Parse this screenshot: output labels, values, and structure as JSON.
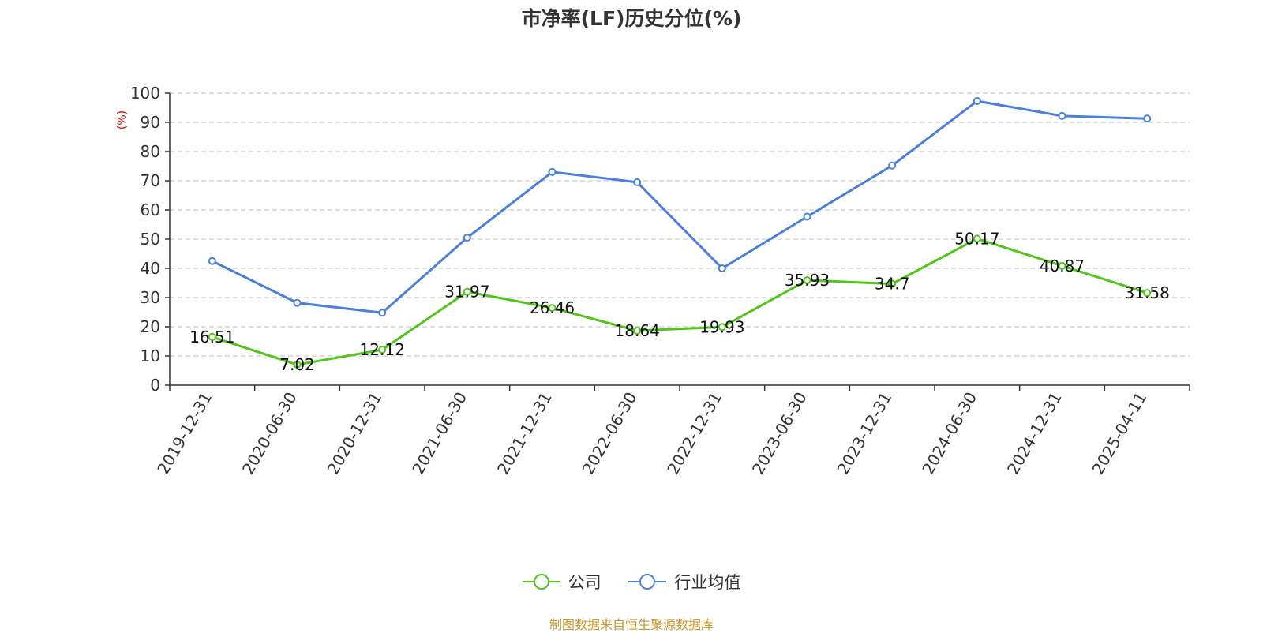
{
  "chart_data": {
    "type": "line",
    "title": "市净率(LF)历史分位(%)",
    "ylabel": "(%)",
    "ylim": [
      0,
      100
    ],
    "yticks": [
      0,
      10,
      20,
      30,
      40,
      50,
      60,
      70,
      80,
      90,
      100
    ],
    "grid": true,
    "legend_position": "bottom-center",
    "categories": [
      "2019-12-31",
      "2020-06-30",
      "2020-12-31",
      "2021-06-30",
      "2021-12-31",
      "2022-06-30",
      "2022-12-31",
      "2023-06-30",
      "2023-12-31",
      "2024-06-30",
      "2024-12-31",
      "2025-04-11"
    ],
    "series": [
      {
        "name": "公司",
        "color": "#52c41a",
        "show_labels": true,
        "values": [
          16.51,
          7.02,
          12.12,
          31.97,
          26.46,
          18.64,
          19.93,
          35.93,
          34.7,
          50.17,
          40.87,
          31.58
        ],
        "labels": [
          "16.51",
          "7.02",
          "12.12",
          "31.97",
          "26.46",
          "18.64",
          "19.93",
          "35.93",
          "34.7",
          "50.17",
          "40.87",
          "31.58"
        ]
      },
      {
        "name": "行业均值",
        "color": "#4a7fdb",
        "show_labels": false,
        "values": [
          42.5,
          28.2,
          24.8,
          50.5,
          73.0,
          69.5,
          40.0,
          57.7,
          75.2,
          97.3,
          92.2,
          91.3
        ]
      }
    ]
  },
  "source": {
    "text": "制图数据来自恒生聚源数据库",
    "color": "#c9962c"
  },
  "colors": {
    "axis": "#333333",
    "grid": "#cccccc",
    "ylabel": "#e00000"
  }
}
